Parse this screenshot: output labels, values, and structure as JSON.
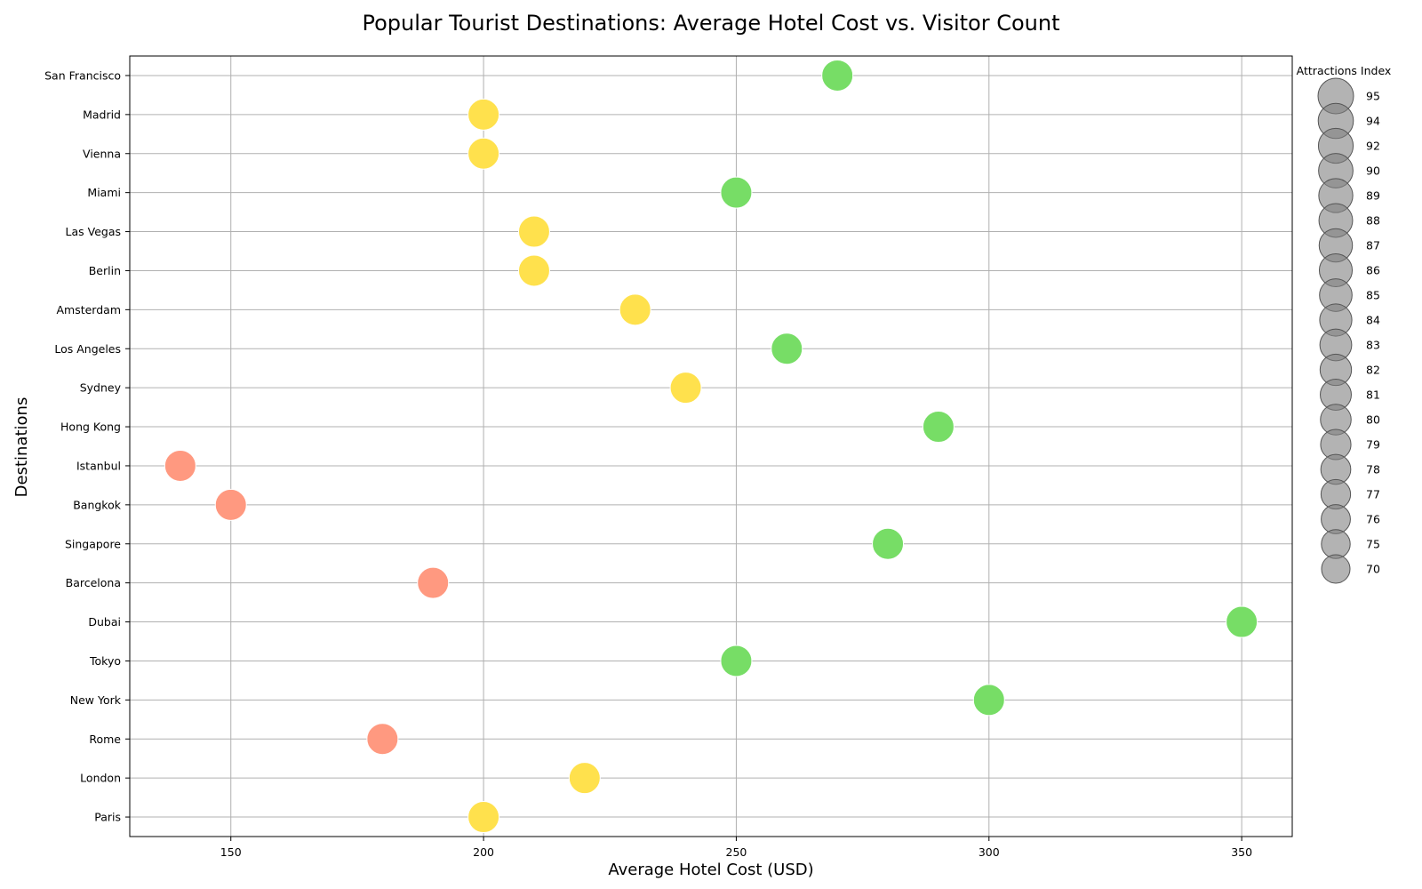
{
  "chart_data": {
    "type": "scatter",
    "title": "Popular Tourist Destinations: Average Hotel Cost vs. Visitor Count",
    "xlabel": "Average Hotel Cost (USD)",
    "ylabel": "Destinations",
    "xlim": [
      130,
      360
    ],
    "xticks": [
      150,
      200,
      250,
      300,
      350
    ],
    "grid": true,
    "categories": [
      "Paris",
      "London",
      "Rome",
      "New York",
      "Tokyo",
      "Dubai",
      "Barcelona",
      "Singapore",
      "Bangkok",
      "Istanbul",
      "Hong Kong",
      "Sydney",
      "Los Angeles",
      "Amsterdam",
      "Berlin",
      "Las Vegas",
      "Miami",
      "Vienna",
      "Madrid",
      "San Francisco"
    ],
    "points": [
      {
        "destination": "Paris",
        "cost": 200,
        "color": "#ffe14d"
      },
      {
        "destination": "London",
        "cost": 220,
        "color": "#ffe14d"
      },
      {
        "destination": "Rome",
        "cost": 180,
        "color": "#ff9980"
      },
      {
        "destination": "New York",
        "cost": 300,
        "color": "#77dd66"
      },
      {
        "destination": "Tokyo",
        "cost": 250,
        "color": "#77dd66"
      },
      {
        "destination": "Dubai",
        "cost": 350,
        "color": "#77dd66"
      },
      {
        "destination": "Barcelona",
        "cost": 190,
        "color": "#ff9980"
      },
      {
        "destination": "Singapore",
        "cost": 280,
        "color": "#77dd66"
      },
      {
        "destination": "Bangkok",
        "cost": 150,
        "color": "#ff9980"
      },
      {
        "destination": "Istanbul",
        "cost": 140,
        "color": "#ff9980"
      },
      {
        "destination": "Hong Kong",
        "cost": 290,
        "color": "#77dd66"
      },
      {
        "destination": "Sydney",
        "cost": 240,
        "color": "#ffe14d"
      },
      {
        "destination": "Los Angeles",
        "cost": 260,
        "color": "#77dd66"
      },
      {
        "destination": "Amsterdam",
        "cost": 230,
        "color": "#ffe14d"
      },
      {
        "destination": "Berlin",
        "cost": 210,
        "color": "#ffe14d"
      },
      {
        "destination": "Las Vegas",
        "cost": 210,
        "color": "#ffe14d"
      },
      {
        "destination": "Miami",
        "cost": 250,
        "color": "#77dd66"
      },
      {
        "destination": "Vienna",
        "cost": 200,
        "color": "#ffe14d"
      },
      {
        "destination": "Madrid",
        "cost": 200,
        "color": "#ffe14d"
      },
      {
        "destination": "San Francisco",
        "cost": 270,
        "color": "#77dd66"
      }
    ],
    "legend": {
      "title": "Attractions Index",
      "placement": "right",
      "entries": [
        "95",
        "94",
        "92",
        "90",
        "89",
        "88",
        "87",
        "86",
        "85",
        "84",
        "83",
        "82",
        "81",
        "80",
        "79",
        "78",
        "77",
        "76",
        "75",
        "70"
      ],
      "marker_color": "#808080"
    }
  }
}
